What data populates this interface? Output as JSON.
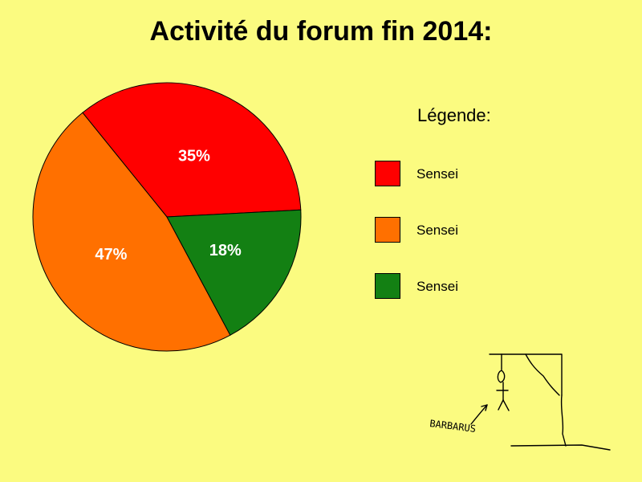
{
  "title": "Activité du forum fin 2014:",
  "legend": {
    "title": "Légende:",
    "items": [
      {
        "label": "Sensei",
        "color": "#FF0000"
      },
      {
        "label": "Sensei",
        "color": "#FF7000"
      },
      {
        "label": "Sensei",
        "color": "#138013"
      }
    ]
  },
  "chart_data": {
    "type": "pie",
    "title": "Activité du forum fin 2014:",
    "legend_title": "Légende:",
    "legend_placement": "right",
    "slices": [
      {
        "label": "Sensei",
        "value": 35,
        "display": "35%",
        "color": "#FF0000"
      },
      {
        "label": "Sensei",
        "value": 47,
        "display": "47%",
        "color": "#FF7000"
      },
      {
        "label": "Sensei",
        "value": 18,
        "display": "18%",
        "color": "#138013"
      }
    ]
  },
  "doodle": {
    "text": "BARBARUS",
    "icon": "hanged-stick-figure"
  }
}
